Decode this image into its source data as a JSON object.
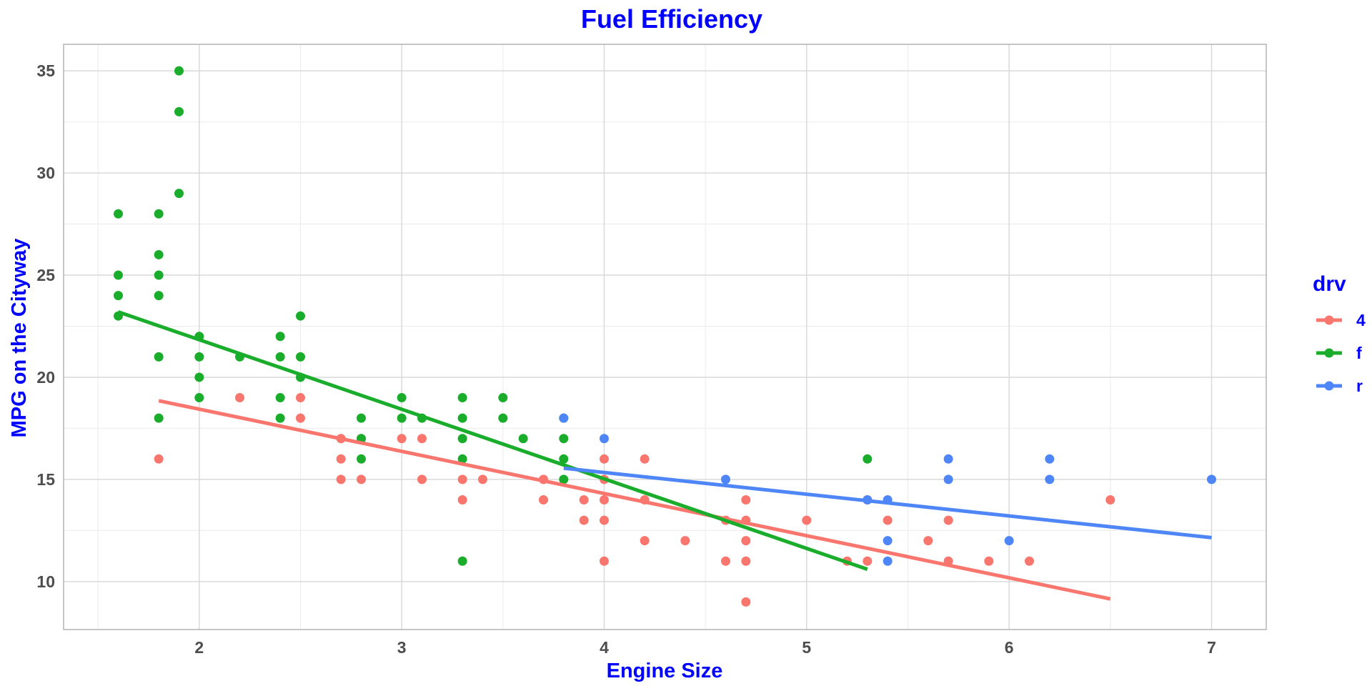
{
  "chart_data": {
    "type": "scatter",
    "title": "Fuel Efficiency",
    "xlabel": "Engine Size",
    "ylabel": "MPG on the Cityway",
    "xlim": [
      1.33,
      7.27
    ],
    "ylim": [
      7.65,
      36.3
    ],
    "xticks": [
      2,
      3,
      4,
      5,
      6,
      7
    ],
    "yticks": [
      10,
      15,
      20,
      25,
      30,
      35
    ],
    "grid": true,
    "legend": {
      "title": "drv",
      "placement": "right",
      "entries": [
        "4",
        "f",
        "r"
      ]
    },
    "colors": {
      "4": "#F8766D",
      "f": "#1aad2c",
      "r": "#4f86f7"
    },
    "series": [
      {
        "name": "4",
        "points": [
          [
            1.8,
            16
          ],
          [
            2.2,
            19
          ],
          [
            2.5,
            19
          ],
          [
            2.5,
            18
          ],
          [
            2.7,
            17
          ],
          [
            2.7,
            16
          ],
          [
            2.7,
            15
          ],
          [
            2.8,
            17
          ],
          [
            2.8,
            15
          ],
          [
            3.0,
            17
          ],
          [
            3.1,
            17
          ],
          [
            3.1,
            15
          ],
          [
            3.3,
            15
          ],
          [
            3.3,
            14
          ],
          [
            3.4,
            15
          ],
          [
            3.7,
            15
          ],
          [
            3.7,
            14
          ],
          [
            3.9,
            14
          ],
          [
            3.9,
            13
          ],
          [
            4.0,
            16
          ],
          [
            4.0,
            15
          ],
          [
            4.0,
            14
          ],
          [
            4.0,
            13
          ],
          [
            4.0,
            11
          ],
          [
            4.2,
            16
          ],
          [
            4.2,
            14
          ],
          [
            4.2,
            12
          ],
          [
            4.4,
            12
          ],
          [
            4.6,
            13
          ],
          [
            4.6,
            11
          ],
          [
            4.7,
            14
          ],
          [
            4.7,
            13
          ],
          [
            4.7,
            12
          ],
          [
            4.7,
            11
          ],
          [
            4.7,
            9
          ],
          [
            5.0,
            13
          ],
          [
            5.2,
            11
          ],
          [
            5.3,
            14
          ],
          [
            5.3,
            11
          ],
          [
            5.4,
            13
          ],
          [
            5.6,
            12
          ],
          [
            5.7,
            13
          ],
          [
            5.7,
            11
          ],
          [
            5.9,
            11
          ],
          [
            6.1,
            11
          ],
          [
            6.5,
            14
          ]
        ],
        "fit": [
          [
            1.8,
            18.85
          ],
          [
            6.5,
            9.15
          ]
        ]
      },
      {
        "name": "f",
        "points": [
          [
            1.6,
            28
          ],
          [
            1.6,
            25
          ],
          [
            1.6,
            24
          ],
          [
            1.6,
            23
          ],
          [
            1.8,
            28
          ],
          [
            1.8,
            26
          ],
          [
            1.8,
            25
          ],
          [
            1.8,
            24
          ],
          [
            1.8,
            21
          ],
          [
            1.8,
            18
          ],
          [
            1.9,
            35
          ],
          [
            1.9,
            33
          ],
          [
            1.9,
            29
          ],
          [
            2.0,
            22
          ],
          [
            2.0,
            21
          ],
          [
            2.0,
            20
          ],
          [
            2.0,
            19
          ],
          [
            2.2,
            21
          ],
          [
            2.4,
            22
          ],
          [
            2.4,
            21
          ],
          [
            2.4,
            19
          ],
          [
            2.4,
            18
          ],
          [
            2.5,
            23
          ],
          [
            2.5,
            21
          ],
          [
            2.5,
            20
          ],
          [
            2.8,
            18
          ],
          [
            2.8,
            17
          ],
          [
            2.8,
            16
          ],
          [
            3.0,
            19
          ],
          [
            3.0,
            18
          ],
          [
            3.1,
            18
          ],
          [
            3.3,
            19
          ],
          [
            3.3,
            18
          ],
          [
            3.3,
            17
          ],
          [
            3.3,
            16
          ],
          [
            3.3,
            11
          ],
          [
            3.5,
            19
          ],
          [
            3.5,
            18
          ],
          [
            3.6,
            17
          ],
          [
            3.8,
            18
          ],
          [
            3.8,
            17
          ],
          [
            3.8,
            16
          ],
          [
            3.8,
            15
          ],
          [
            5.3,
            16
          ]
        ],
        "fit": [
          [
            1.6,
            23.2
          ],
          [
            5.3,
            10.6
          ]
        ]
      },
      {
        "name": "r",
        "points": [
          [
            3.8,
            18
          ],
          [
            4.0,
            17
          ],
          [
            4.6,
            15
          ],
          [
            5.3,
            14
          ],
          [
            5.4,
            14
          ],
          [
            5.4,
            12
          ],
          [
            5.4,
            11
          ],
          [
            5.7,
            16
          ],
          [
            5.7,
            15
          ],
          [
            6.0,
            12
          ],
          [
            6.2,
            16
          ],
          [
            6.2,
            15
          ],
          [
            7.0,
            15
          ]
        ],
        "fit": [
          [
            3.8,
            15.55
          ],
          [
            7.0,
            12.15
          ]
        ]
      }
    ]
  }
}
